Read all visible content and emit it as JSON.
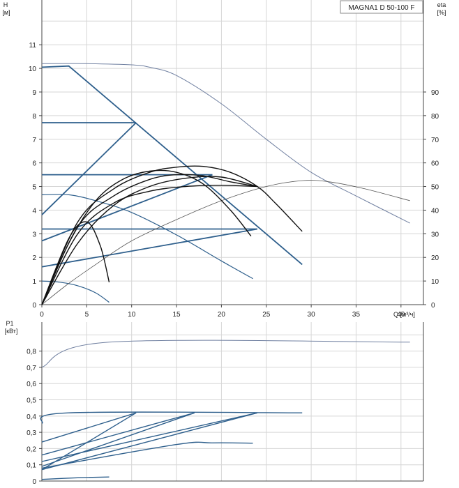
{
  "chart_data": [
    {
      "type": "line",
      "panel": "head",
      "title": "MAGNA1 D 50-100 F",
      "ylabel": "H",
      "yunit": "[м]",
      "y2label": "eta",
      "y2unit": "[%]",
      "xlabel": "Q [м³/ч]",
      "xlim": [
        0,
        42.5
      ],
      "ylim": [
        0,
        12
      ],
      "y2lim": [
        0,
        120
      ],
      "grid": true,
      "xticks": [
        "0",
        "5",
        "10",
        "15",
        "20",
        "25",
        "30",
        "35",
        "40"
      ],
      "yticks": [
        "0",
        "1",
        "2",
        "3",
        "4",
        "5",
        "6",
        "7",
        "8",
        "9",
        "10",
        "11"
      ],
      "y2ticks": [
        "0",
        "10",
        "20",
        "30",
        "40",
        "50",
        "60",
        "70",
        "80",
        "90"
      ],
      "colors": {
        "control": "#2e5f8c",
        "speed_curves": "#2e5f8c",
        "pump_eta": "#111111",
        "max_curve": "#6f7fa0"
      },
      "series": [
        {
          "group": "max",
          "x": [
            0,
            5,
            10,
            12,
            15,
            20,
            25,
            30,
            35,
            41
          ],
          "y": [
            10.2,
            10.2,
            10.15,
            10.05,
            9.7,
            8.5,
            7.0,
            5.6,
            4.6,
            3.45
          ]
        },
        {
          "group": "control",
          "x": [
            0,
            3,
            29
          ],
          "y": [
            10.05,
            10.1,
            1.7
          ]
        },
        {
          "group": "control",
          "x": [
            0,
            10.5
          ],
          "y": [
            7.7,
            7.7
          ]
        },
        {
          "group": "control",
          "x": [
            0,
            10.5
          ],
          "y": [
            3.8,
            7.7
          ]
        },
        {
          "group": "control",
          "x": [
            0,
            19
          ],
          "y": [
            5.5,
            5.5
          ]
        },
        {
          "group": "control",
          "x": [
            0,
            19
          ],
          "y": [
            2.7,
            5.5
          ]
        },
        {
          "group": "control",
          "x": [
            0,
            24
          ],
          "y": [
            3.2,
            3.2
          ]
        },
        {
          "group": "control",
          "x": [
            0,
            24
          ],
          "y": [
            1.6,
            3.2
          ]
        },
        {
          "group": "speed",
          "x": [
            0,
            3,
            6,
            10,
            15,
            20,
            23.5
          ],
          "y": [
            4.65,
            4.65,
            4.4,
            3.9,
            2.95,
            1.85,
            1.1
          ]
        },
        {
          "group": "speed",
          "x": [
            0,
            2,
            4,
            6,
            7.5
          ],
          "y": [
            1.0,
            0.95,
            0.8,
            0.5,
            0.1
          ]
        },
        {
          "group": "eta",
          "x": [
            0,
            3,
            6,
            10,
            15,
            20,
            25,
            29,
            32,
            36,
            41
          ],
          "y": [
            0,
            9,
            17,
            27,
            36,
            44,
            50,
            52.5,
            52,
            49,
            44
          ]
        },
        {
          "group": "pump",
          "x": [
            0,
            4,
            8,
            12,
            15,
            18,
            21,
            24,
            26,
            29
          ],
          "y": [
            0,
            3.5,
            4.9,
            5.6,
            5.82,
            5.85,
            5.6,
            5.0,
            4.3,
            3.1
          ]
        },
        {
          "group": "pump",
          "x": [
            0,
            4,
            8,
            12,
            15,
            18,
            21,
            24
          ],
          "y": [
            0,
            3.3,
            4.6,
            5.3,
            5.5,
            5.45,
            5.2,
            5.0
          ]
        },
        {
          "group": "pump",
          "x": [
            0,
            4,
            8,
            12,
            16,
            20,
            24
          ],
          "y": [
            0,
            3.0,
            4.3,
            4.8,
            5.0,
            5.05,
            5.0
          ]
        },
        {
          "group": "pump",
          "x": [
            0,
            3,
            6,
            9,
            12,
            15,
            18,
            21,
            23.3
          ],
          "y": [
            0,
            2.6,
            4.4,
            5.3,
            5.65,
            5.6,
            5.1,
            4.0,
            2.9
          ]
        },
        {
          "group": "pump",
          "x": [
            0,
            4,
            8,
            12,
            16,
            20,
            24
          ],
          "y": [
            0,
            2.6,
            4.2,
            5.0,
            5.35,
            5.4,
            5.0
          ]
        },
        {
          "group": "pump",
          "x": [
            0,
            3,
            5,
            6.5,
            7.5
          ],
          "y": [
            0,
            2.8,
            3.5,
            2.5,
            0.95
          ]
        }
      ]
    },
    {
      "type": "line",
      "panel": "power",
      "ylabel": "P1",
      "yunit": "[кВт]",
      "xlim": [
        0,
        42.5
      ],
      "ylim": [
        0,
        0.9
      ],
      "grid": true,
      "yticks": [
        "0",
        "0,1",
        "0,2",
        "0,3",
        "0,4",
        "0,5",
        "0,6",
        "0,7",
        "0,8"
      ],
      "series": [
        {
          "group": "max",
          "x": [
            0,
            7.5,
            41
          ],
          "y": [
            0.7,
            0.855,
            0.855
          ]
        },
        {
          "group": "power",
          "x": [
            0,
            3,
            29
          ],
          "y": [
            0.355,
            0.42,
            0.42
          ]
        },
        {
          "group": "power",
          "x": [
            0,
            10.5
          ],
          "y": [
            0.24,
            0.42
          ]
        },
        {
          "group": "power",
          "x": [
            0,
            10.5
          ],
          "y": [
            0.07,
            0.42
          ]
        },
        {
          "group": "power",
          "x": [
            0,
            17
          ],
          "y": [
            0.16,
            0.42
          ]
        },
        {
          "group": "power",
          "x": [
            0,
            17
          ],
          "y": [
            0.09,
            0.42
          ]
        },
        {
          "group": "power",
          "x": [
            0,
            24
          ],
          "y": [
            0.12,
            0.42
          ]
        },
        {
          "group": "power",
          "x": [
            0,
            24
          ],
          "y": [
            0.07,
            0.42
          ]
        },
        {
          "group": "power",
          "x": [
            0,
            15,
            19,
            23.5
          ],
          "y": [
            0.08,
            0.225,
            0.235,
            0.233
          ]
        },
        {
          "group": "power",
          "x": [
            0,
            4,
            7.5
          ],
          "y": [
            0.01,
            0.02,
            0.025
          ]
        }
      ]
    }
  ]
}
